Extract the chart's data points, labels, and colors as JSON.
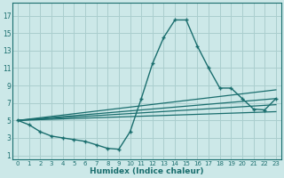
{
  "xlabel": "Humidex (Indice chaleur)",
  "bg_color": "#cce8e8",
  "grid_color": "#aacece",
  "line_color": "#1a6e6e",
  "xlim": [
    -0.5,
    23.5
  ],
  "ylim": [
    0.5,
    18.5
  ],
  "xticks": [
    0,
    1,
    2,
    3,
    4,
    5,
    6,
    7,
    8,
    9,
    10,
    11,
    12,
    13,
    14,
    15,
    16,
    17,
    18,
    19,
    20,
    21,
    22,
    23
  ],
  "yticks": [
    1,
    3,
    5,
    7,
    9,
    11,
    13,
    15,
    17
  ],
  "main_curve": [
    5,
    4.5,
    3.7,
    3.2,
    3.0,
    2.8,
    2.6,
    2.2,
    1.8,
    1.7,
    3.7,
    7.5,
    11.5,
    14.5,
    16.5,
    16.5,
    13.5,
    11.0,
    8.7,
    8.7,
    7.5,
    6.3,
    6.2,
    7.5
  ],
  "fan_lines": [
    {
      "x": [
        0,
        23
      ],
      "y": [
        5,
        8.5
      ]
    },
    {
      "x": [
        0,
        23
      ],
      "y": [
        5,
        7.5
      ]
    },
    {
      "x": [
        0,
        23
      ],
      "y": [
        5,
        6.8
      ]
    },
    {
      "x": [
        0,
        23
      ],
      "y": [
        5,
        6.0
      ]
    }
  ]
}
